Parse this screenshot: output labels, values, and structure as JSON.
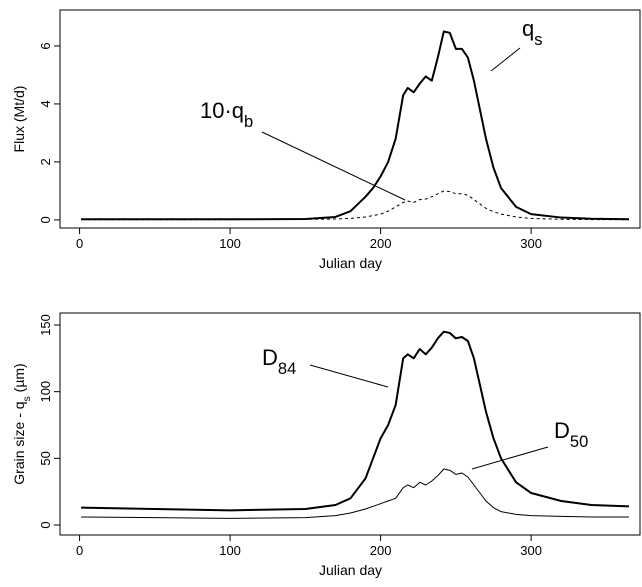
{
  "chart_data": [
    {
      "type": "line",
      "xlabel": "Julian day",
      "ylabel": "Flux (Mt/d)",
      "x": [
        1,
        50,
        100,
        150,
        170,
        180,
        190,
        195,
        200,
        205,
        210,
        215,
        218,
        222,
        226,
        230,
        234,
        238,
        242,
        246,
        250,
        254,
        258,
        262,
        266,
        270,
        275,
        280,
        290,
        300,
        320,
        340,
        365
      ],
      "series": [
        {
          "color": "#000000",
          "width": 2,
          "dash": false,
          "annotation": {
            "text": "q",
            "sub": "s"
          },
          "values": [
            0.02,
            0.02,
            0.02,
            0.03,
            0.1,
            0.3,
            0.8,
            1.1,
            1.5,
            2.0,
            2.8,
            4.3,
            4.55,
            4.4,
            4.7,
            4.95,
            4.8,
            5.6,
            6.5,
            6.45,
            5.9,
            5.9,
            5.6,
            4.8,
            3.8,
            2.8,
            1.8,
            1.1,
            0.45,
            0.2,
            0.08,
            0.04,
            0.02
          ]
        },
        {
          "color": "#000000",
          "width": 1,
          "dash": true,
          "annotation": {
            "text": "10·q",
            "sub": "b"
          },
          "values": [
            0.01,
            0.01,
            0.01,
            0.02,
            0.03,
            0.05,
            0.1,
            0.15,
            0.2,
            0.3,
            0.45,
            0.6,
            0.65,
            0.6,
            0.7,
            0.72,
            0.8,
            0.9,
            1.0,
            0.98,
            0.9,
            0.9,
            0.85,
            0.7,
            0.55,
            0.4,
            0.28,
            0.2,
            0.1,
            0.05,
            0.02,
            0.01,
            0.01
          ]
        }
      ],
      "xlim": [
        -13,
        373
      ],
      "xticks": [
        0,
        100,
        200,
        300
      ],
      "ylim": [
        -0.28,
        7.24
      ],
      "yticks": [
        0,
        2,
        4,
        6
      ]
    },
    {
      "type": "line",
      "xlabel": "Julian day",
      "ylabel": {
        "text": "Grain size - q",
        "sub": "s",
        "after": " (µm)"
      },
      "x": [
        1,
        50,
        100,
        150,
        170,
        180,
        190,
        195,
        200,
        205,
        210,
        215,
        218,
        222,
        226,
        230,
        234,
        238,
        242,
        246,
        250,
        254,
        258,
        262,
        266,
        270,
        275,
        280,
        290,
        300,
        320,
        340,
        365
      ],
      "series": [
        {
          "color": "#000000",
          "width": 2,
          "dash": false,
          "annotation": {
            "text": "D",
            "sub": "84"
          },
          "values": [
            13,
            12,
            11,
            12,
            15,
            20,
            35,
            50,
            65,
            75,
            90,
            125,
            128,
            125,
            132,
            128,
            133,
            140,
            145,
            144,
            140,
            141,
            138,
            125,
            105,
            85,
            65,
            50,
            32,
            24,
            18,
            15,
            14
          ]
        },
        {
          "color": "#000000",
          "width": 1,
          "dash": false,
          "annotation": {
            "text": "D",
            "sub": "50"
          },
          "values": [
            6,
            5.5,
            5,
            5.5,
            7,
            9,
            12,
            14,
            16,
            18,
            20,
            28,
            30,
            28,
            32,
            30,
            33,
            37,
            42,
            41,
            38,
            39,
            36,
            30,
            24,
            18,
            13,
            10,
            8,
            7,
            6.5,
            6,
            6
          ]
        }
      ],
      "xlim": [
        -13,
        373
      ],
      "xticks": [
        0,
        100,
        200,
        300
      ],
      "ylim": [
        -7.5,
        159
      ],
      "yticks": [
        0,
        50,
        100,
        150
      ]
    }
  ]
}
